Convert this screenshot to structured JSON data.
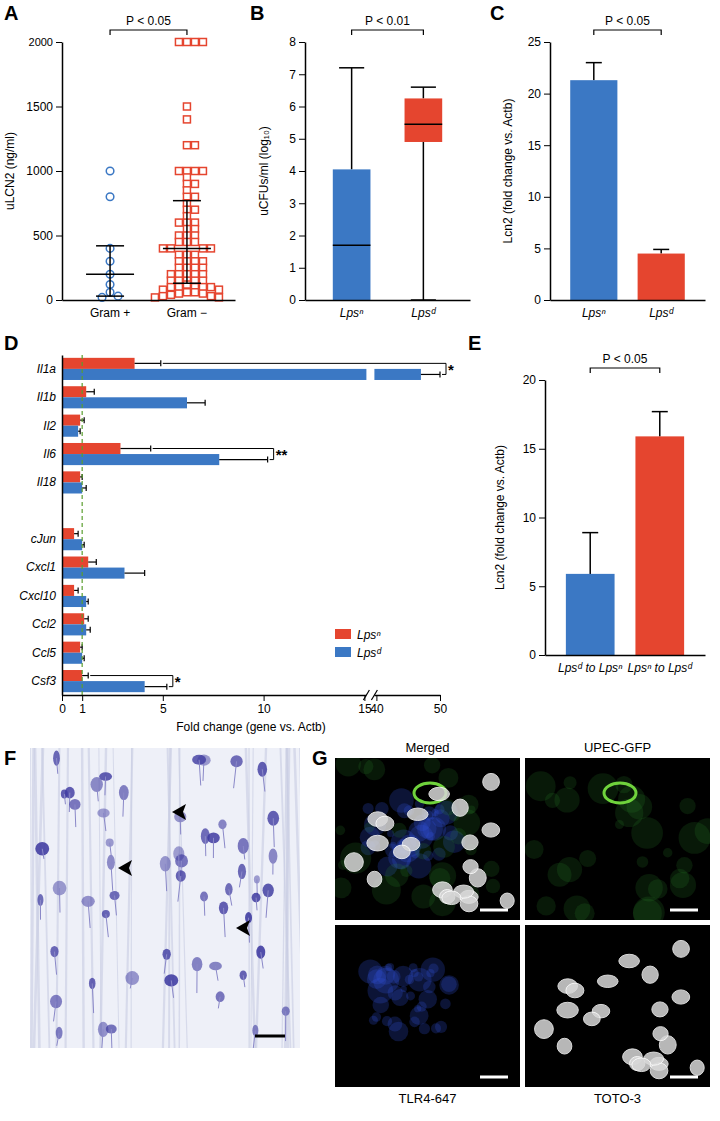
{
  "chart_data": [
    {
      "type": "scatter",
      "title": "A",
      "y_label": "uLCN2 (ng/ml)",
      "categories": [
        "Gram +",
        "Gram −"
      ],
      "groups": [
        {
          "color": "#3b78c4",
          "marker": "circle",
          "values": [
            1000,
            800,
            400,
            300,
            200,
            120,
            60,
            30,
            20
          ],
          "center": 200,
          "whisker_low": 30,
          "whisker_high": 420
        },
        {
          "color": "#e5452f",
          "marker": "square",
          "values": [
            2000,
            2000,
            2000,
            2000,
            1500,
            1400,
            1200,
            1200,
            1000,
            1000,
            1000,
            1000,
            950,
            900,
            900,
            850,
            800,
            800,
            750,
            700,
            700,
            650,
            600,
            600,
            600,
            550,
            550,
            500,
            500,
            500,
            450,
            450,
            450,
            400,
            400,
            400,
            400,
            350,
            350,
            350,
            300,
            300,
            300,
            300,
            250,
            250,
            250,
            250,
            200,
            200,
            200,
            200,
            200,
            150,
            150,
            150,
            150,
            150,
            120,
            100,
            100,
            100,
            100,
            100,
            80,
            80,
            60,
            60,
            50,
            50,
            40,
            30,
            30,
            20,
            20
          ],
          "center": 400,
          "whisker_low": 130,
          "whisker_high": 770
        }
      ],
      "ylim": [
        0,
        2000
      ],
      "yticks": [
        0,
        500,
        1000,
        1500,
        2000
      ],
      "annotation": "P < 0.05"
    },
    {
      "type": "box",
      "title": "B",
      "y_label": "uCFUs/ml (log₁₀)",
      "categories": [
        "Lpsⁿ",
        "Lpsᵈ"
      ],
      "colors": [
        "#3b78c4",
        "#e5452f"
      ],
      "boxes": [
        {
          "min": 0,
          "q1": 0,
          "median": 1.7,
          "q3": 4.05,
          "max": 7.2
        },
        {
          "min": 0,
          "q1": 4.9,
          "median": 5.45,
          "q3": 6.25,
          "max": 6.6
        }
      ],
      "ylim": [
        0,
        8
      ],
      "yticks": [
        0,
        1,
        2,
        3,
        4,
        5,
        6,
        7,
        8
      ],
      "annotation": "P < 0.01"
    },
    {
      "type": "bar",
      "title": "C",
      "y_label": "Lcn2 (fold change vs. Actb)",
      "categories": [
        "Lpsⁿ",
        "Lpsᵈ"
      ],
      "values": [
        21.3,
        4.5
      ],
      "errors": [
        1.7,
        0.4
      ],
      "colors": [
        "#3b78c4",
        "#e5452f"
      ],
      "ylim": [
        0,
        25
      ],
      "yticks": [
        0,
        5,
        10,
        15,
        20,
        25
      ],
      "annotation": "P < 0.05"
    },
    {
      "type": "bar",
      "title": "D",
      "orientation": "horizontal",
      "x_label": "Fold change (gene vs. Actb)",
      "categories": [
        "Il1a",
        "Il1b",
        "Il2",
        "Il6",
        "Il18",
        null,
        "cJun",
        "Cxcl1",
        "Cxcl10",
        "Ccl2",
        "Ccl5",
        "Csf3"
      ],
      "series": [
        {
          "name": "Lpsⁿ",
          "color": "#e5452f",
          "values": [
            3.6,
            1.2,
            0.9,
            2.9,
            0.9,
            null,
            0.6,
            1.3,
            0.6,
            1.1,
            0.9,
            1.0
          ],
          "errors": [
            1.3,
            0.4,
            0.2,
            1.5,
            0.1,
            null,
            0.2,
            0.4,
            0.2,
            0.2,
            0.1,
            0.3
          ]
        },
        {
          "name": "Lpsᵈ",
          "color": "#3b78c4",
          "values": [
            47,
            6.2,
            0.8,
            7.8,
            1.0,
            null,
            1.0,
            3.1,
            1.2,
            1.2,
            1.0,
            4.1
          ],
          "errors": [
            3,
            0.9,
            0.1,
            2.4,
            0.2,
            null,
            0.1,
            1.0,
            0.1,
            0.2,
            0.1,
            1.1
          ]
        }
      ],
      "xlim": [
        0,
        50
      ],
      "xticks": [
        0,
        1,
        5,
        10,
        15,
        40,
        50
      ],
      "reference": 1,
      "legend": "lower right",
      "significance": [
        {
          "category": "Il1a",
          "text": "*"
        },
        {
          "category": "Il6",
          "text": "**"
        },
        {
          "category": "Csf3",
          "text": "*"
        }
      ]
    },
    {
      "type": "bar",
      "title": "E",
      "y_label": "Lcn2 (fold change vs. Actb)",
      "categories": [
        "Lpsᵈ to Lpsⁿ",
        "Lpsⁿ to Lpsᵈ"
      ],
      "values": [
        5.9,
        15.9
      ],
      "errors": [
        3.0,
        1.8
      ],
      "colors": [
        "#3b78c4",
        "#e5452f"
      ],
      "ylim": [
        0,
        20
      ],
      "yticks": [
        0,
        5,
        10,
        15,
        20
      ],
      "annotation": "P < 0.05"
    }
  ],
  "images": [
    {
      "title": "F"
    },
    {
      "title": "G",
      "panels": [
        "Merged",
        "UPEC-GFP",
        "TLR4-647",
        "TOTO-3"
      ]
    }
  ]
}
